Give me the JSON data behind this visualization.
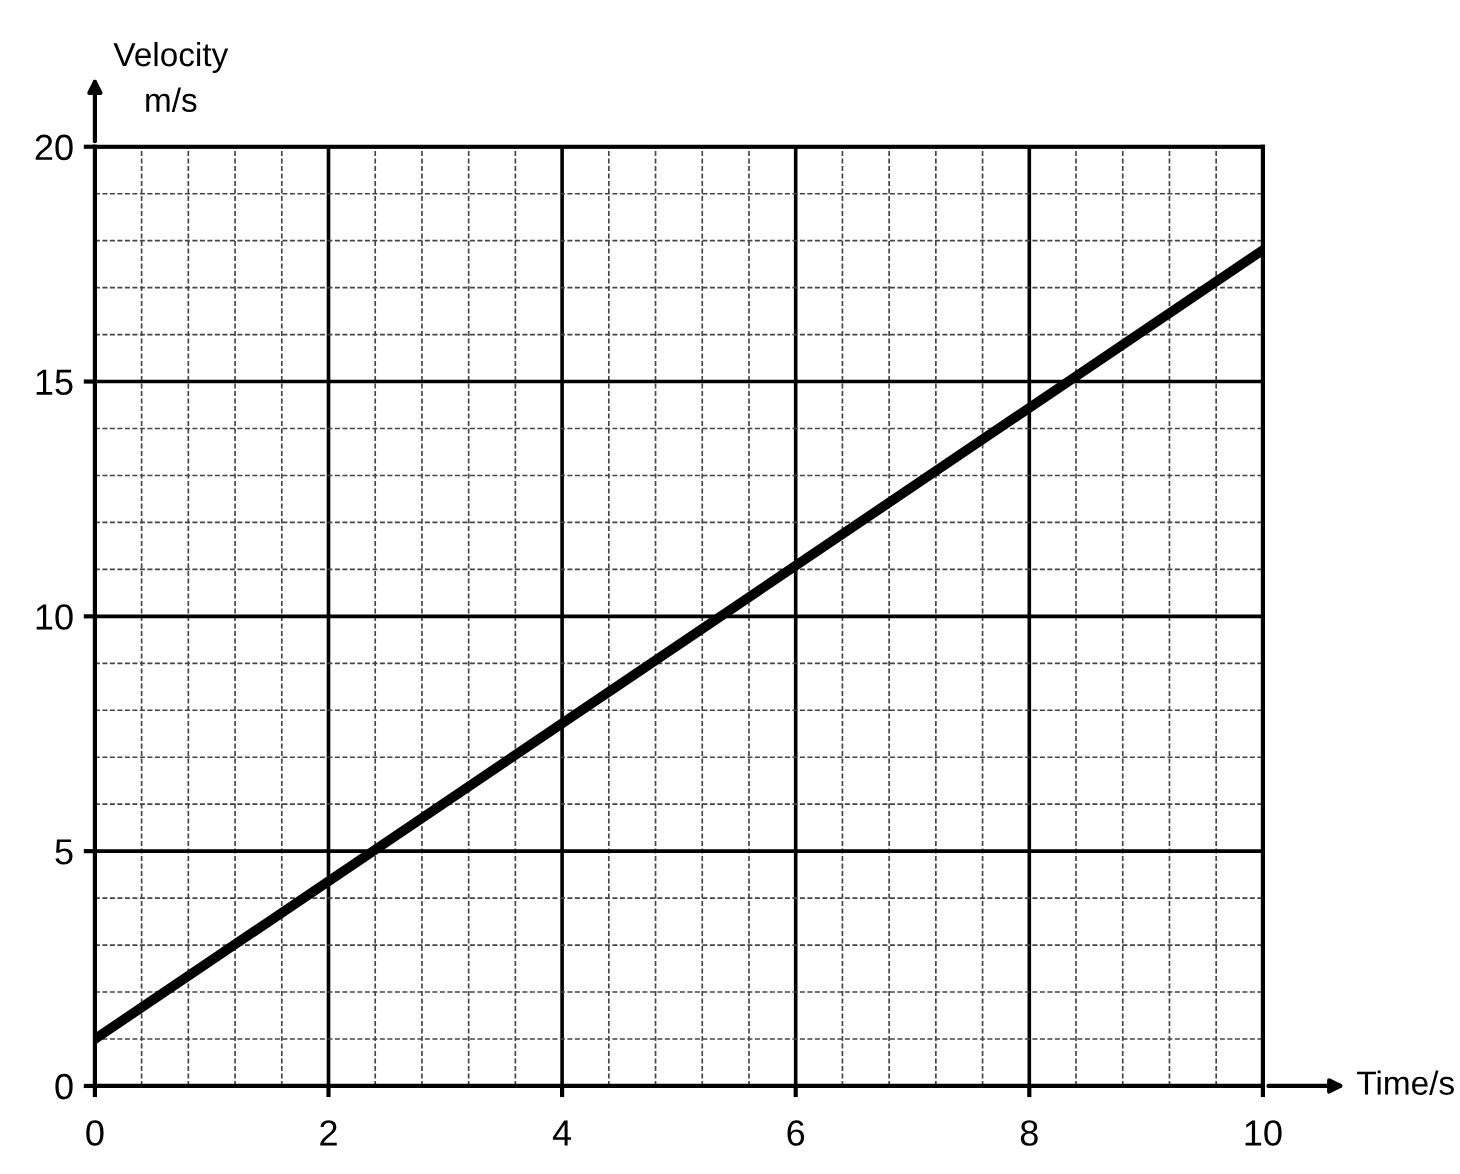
{
  "chart_data": {
    "type": "line",
    "xlabel": "Time/s",
    "ylabel": "Velocity\nm/s",
    "x": [
      0,
      10
    ],
    "series": [
      {
        "color": "#000000",
        "values": [
          1,
          17.8
        ]
      }
    ],
    "xlim": [
      0,
      10
    ],
    "ylim": [
      0,
      20
    ],
    "xticks": [
      0,
      2,
      4,
      6,
      8,
      10
    ],
    "yticks": [
      0,
      5,
      10,
      15,
      20
    ],
    "grid": true,
    "marker": "none",
    "line_style": "solid"
  }
}
